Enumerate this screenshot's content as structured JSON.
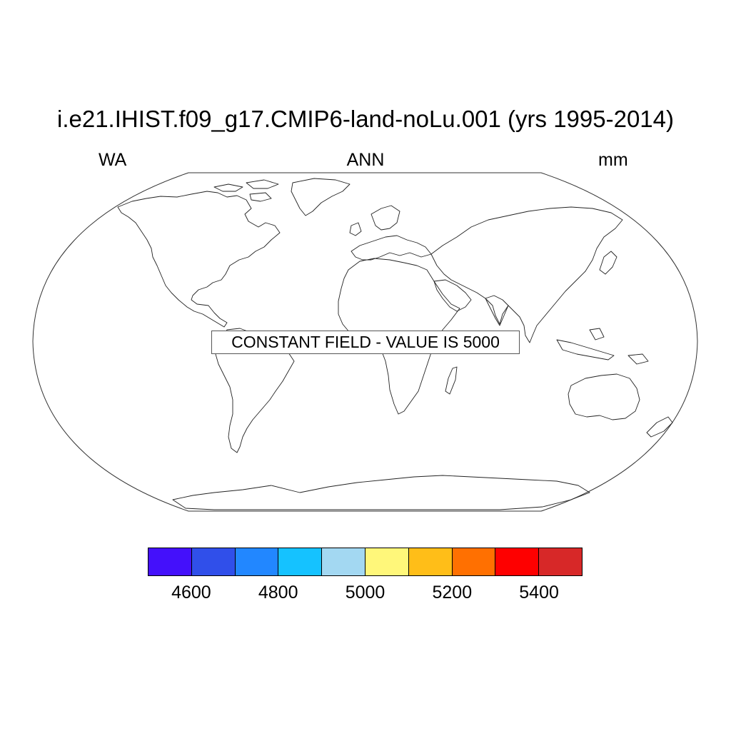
{
  "title": "i.e21.IHIST.f09_g17.CMIP6-land-noLu.001 (yrs 1995-2014)",
  "subtitles": {
    "left": "WA",
    "center": "ANN",
    "right": "mm"
  },
  "map_note": "CONSTANT FIELD - VALUE IS 5000",
  "colorbar": {
    "colors": [
      "#4410fb",
      "#304fea",
      "#2287ff",
      "#15c2ff",
      "#a3d8f2",
      "#fff77a",
      "#ffbe18",
      "#ff7001",
      "#fe0000",
      "#d72828"
    ],
    "labels": [
      "4600",
      "4800",
      "5000",
      "5200",
      "5400"
    ]
  }
}
